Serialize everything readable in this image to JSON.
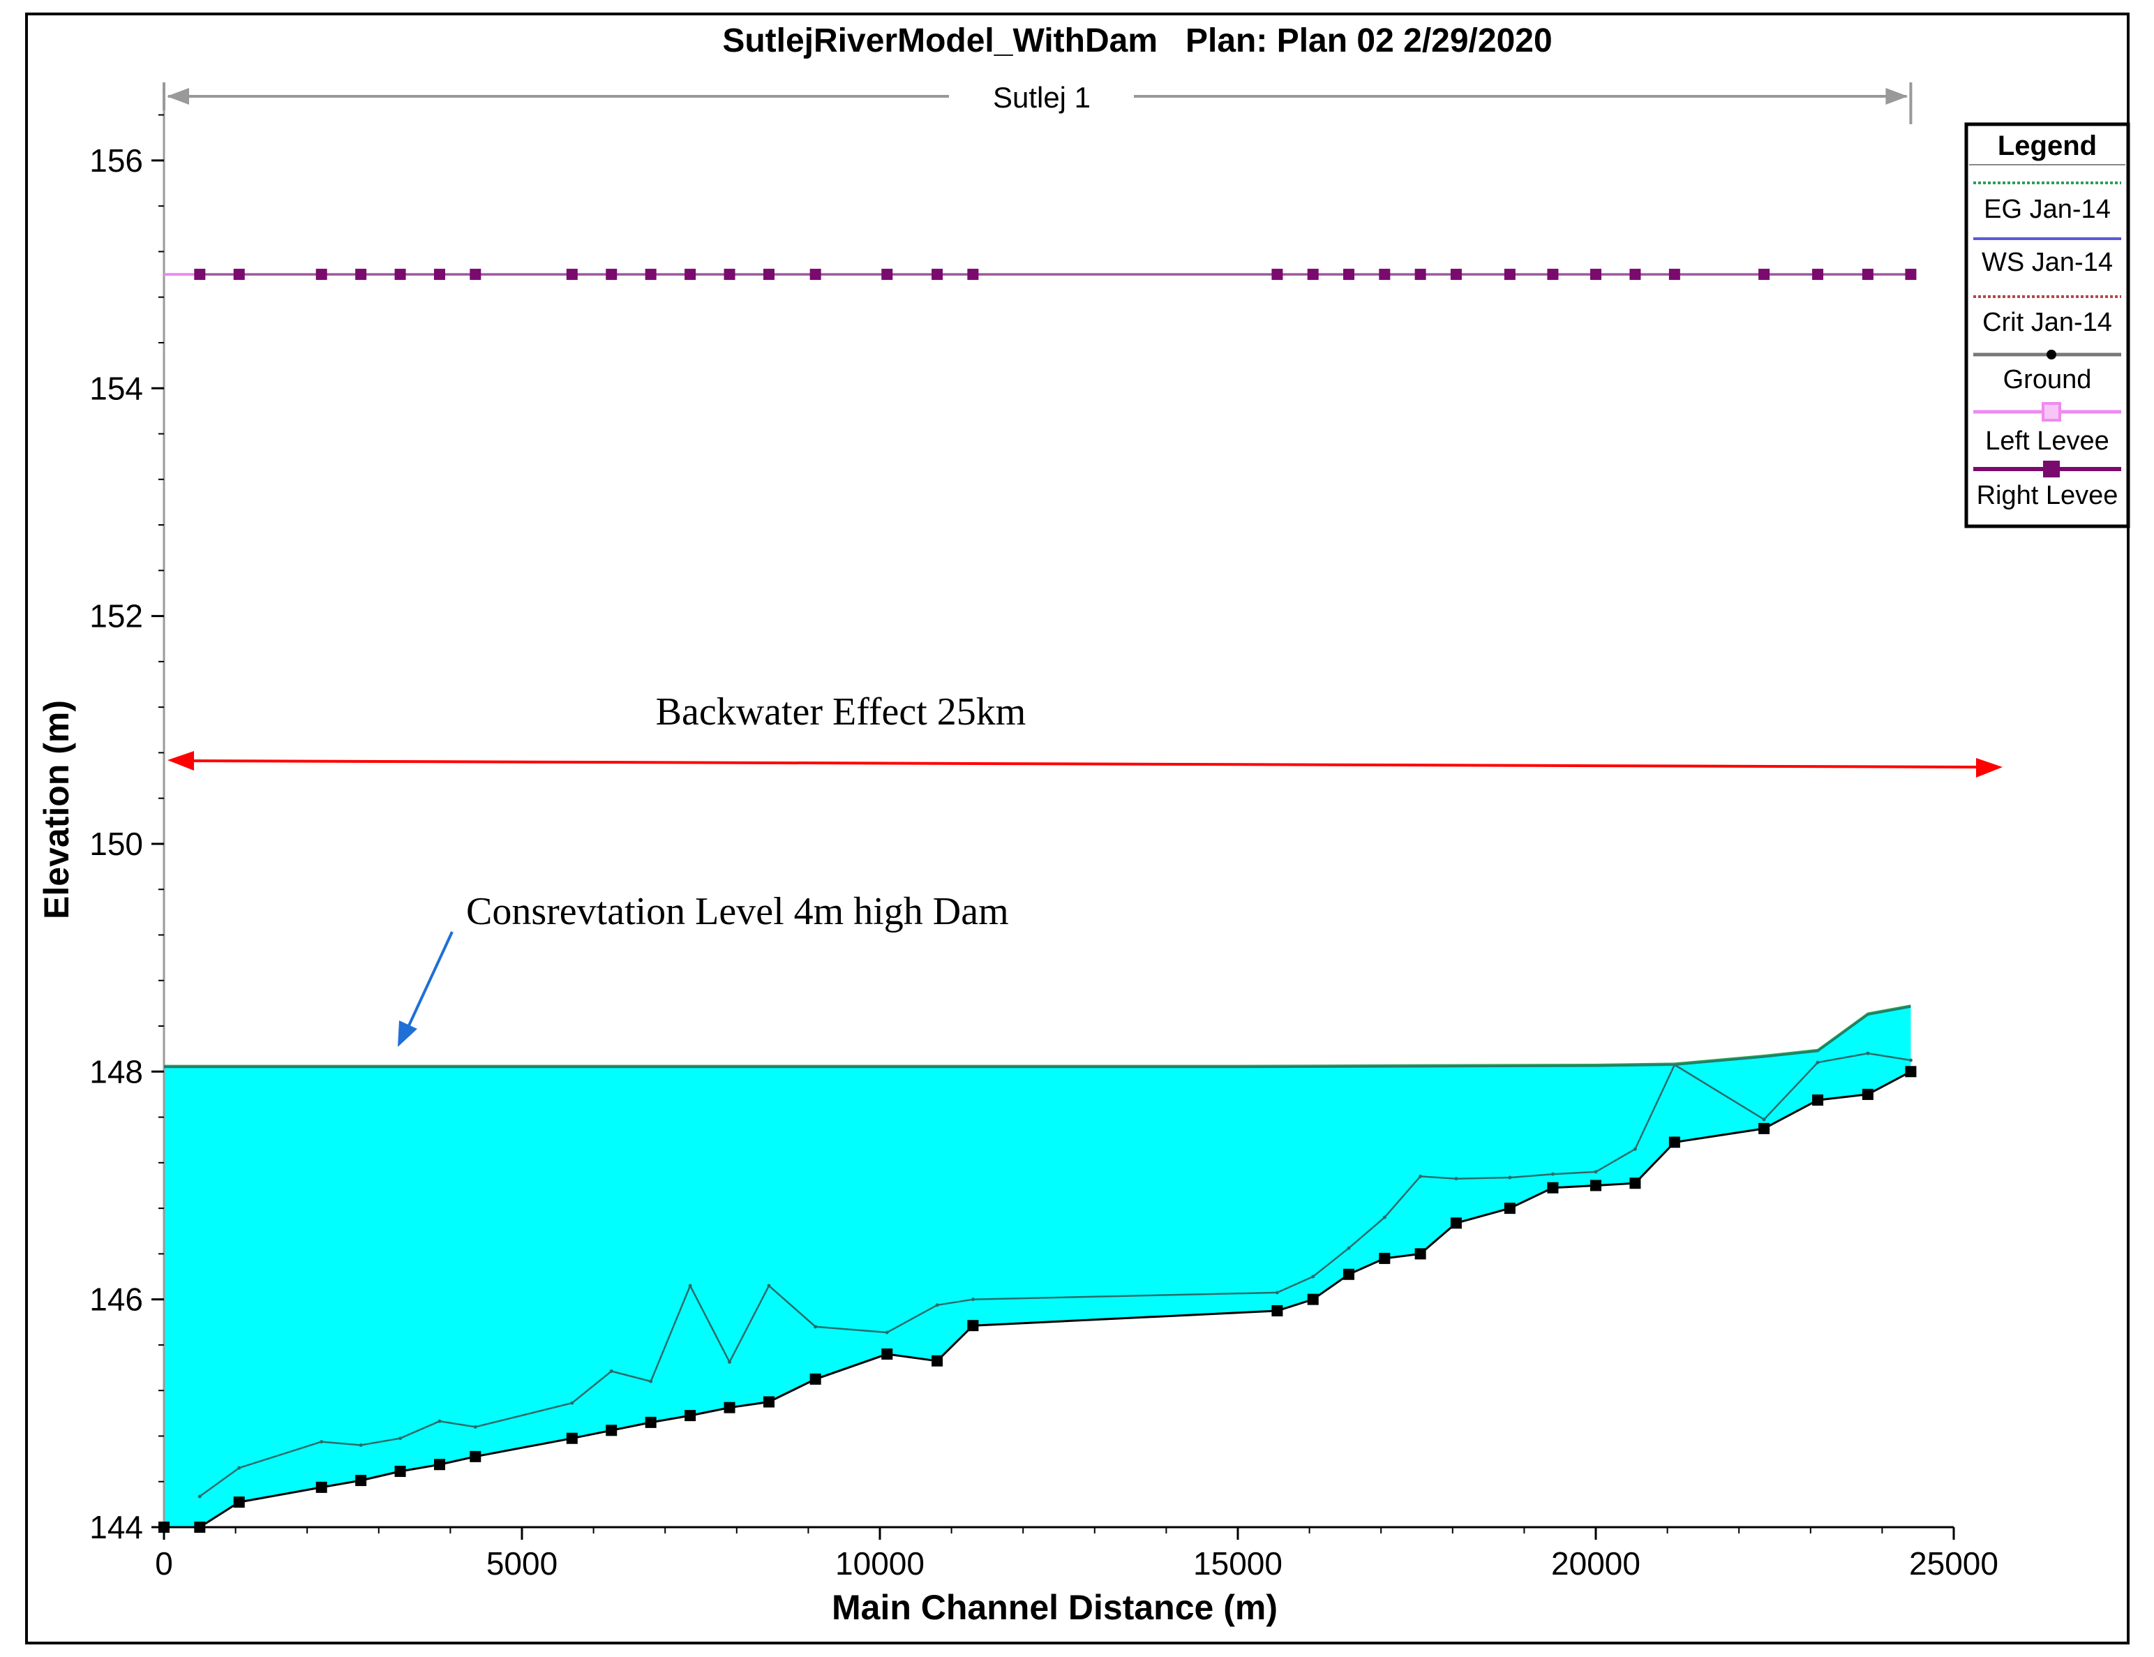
{
  "chart_data": {
    "type": "line",
    "title": "SutlejRiverModel_WithDam   Plan: Plan 02 2/29/2020",
    "reach_label": "Sutlej  1",
    "xlabel": "Main Channel Distance (m)",
    "ylabel": "Elevation (m)",
    "xlim": [
      0,
      25000
    ],
    "ylim": [
      144,
      156.6
    ],
    "x_ticks": [
      0,
      5000,
      10000,
      15000,
      20000,
      25000
    ],
    "y_ticks": [
      144,
      146,
      148,
      150,
      152,
      154,
      156
    ],
    "legend": {
      "title": "Legend",
      "position": "top-right",
      "entries": [
        "EG Jan-14",
        "WS Jan-14",
        "Crit Jan-14",
        "Ground",
        "Left Levee",
        "Right Levee"
      ]
    },
    "colors": {
      "eg": "#2e9e57",
      "ws": "#5b5bd6",
      "crit": "#b5484b",
      "ground": "#000000",
      "left_levee": "#f08af0",
      "right_levee": "#7a0a6e",
      "water_fill": "#00ffff",
      "backwater_arrow": "#ff0000",
      "annotation_arrow": "#1f6fd6",
      "reach_arrow": "#999999"
    },
    "series": [
      {
        "name": "Ground",
        "x": [
          0,
          500,
          1050,
          2200,
          2750,
          3300,
          3850,
          4350,
          5700,
          6250,
          6800,
          7350,
          7900,
          8450,
          9100,
          10100,
          10800,
          11300,
          15550,
          16050,
          16550,
          17050,
          17550,
          18050,
          18800,
          19400,
          20000,
          20550,
          21100,
          22350,
          23100,
          23800,
          24400
        ],
        "y": [
          144.0,
          144.0,
          144.22,
          144.35,
          144.41,
          144.49,
          144.55,
          144.62,
          144.78,
          144.85,
          144.92,
          144.98,
          145.05,
          145.1,
          145.3,
          145.52,
          145.46,
          145.77,
          145.9,
          146.0,
          146.22,
          146.36,
          146.4,
          146.67,
          146.8,
          146.98,
          147.0,
          147.02,
          147.38,
          147.5,
          147.75,
          147.8,
          148.0
        ]
      },
      {
        "name": "Crit Jan-14",
        "x": [
          500,
          1050,
          2200,
          2750,
          3300,
          3850,
          4350,
          5700,
          6250,
          6800,
          7350,
          7900,
          8450,
          9100,
          10100,
          10800,
          11300,
          15550,
          16050,
          16550,
          17050,
          17550,
          18050,
          18800,
          19400,
          20000,
          20550,
          21100,
          22350,
          23100,
          23800,
          24400
        ],
        "y": [
          144.27,
          144.52,
          144.75,
          144.72,
          144.78,
          144.93,
          144.88,
          145.09,
          145.37,
          145.28,
          146.12,
          145.45,
          146.12,
          145.76,
          145.71,
          145.95,
          146.0,
          146.06,
          146.2,
          146.45,
          146.72,
          147.08,
          147.06,
          147.07,
          147.1,
          147.12,
          147.32,
          148.06,
          147.58,
          148.08,
          148.16,
          148.1
        ]
      },
      {
        "name": "WS Jan-14",
        "x": [
          0,
          5000,
          10000,
          15000,
          20000,
          21100,
          22350,
          23100,
          23800,
          24400
        ],
        "y": [
          148.04,
          148.04,
          148.04,
          148.04,
          148.05,
          148.06,
          148.13,
          148.18,
          148.5,
          148.57
        ]
      },
      {
        "name": "EG Jan-14",
        "x": [
          0,
          5000,
          10000,
          15000,
          20000,
          21100,
          22350,
          23100,
          23800,
          24400
        ],
        "y": [
          148.05,
          148.05,
          148.05,
          148.05,
          148.06,
          148.07,
          148.14,
          148.19,
          148.51,
          148.58
        ]
      },
      {
        "name": "Left Levee",
        "x": [
          0,
          24400
        ],
        "y": [
          155.0,
          155.0
        ]
      },
      {
        "name": "Right Levee",
        "x": [
          500,
          1050,
          2200,
          2750,
          3300,
          3850,
          4350,
          5700,
          6250,
          6800,
          7350,
          7900,
          8450,
          9100,
          10100,
          10800,
          11300,
          15550,
          16050,
          16550,
          17050,
          17550,
          18050,
          18800,
          19400,
          20000,
          20550,
          21100,
          22350,
          23100,
          23800,
          24400
        ],
        "y": [
          155,
          155,
          155,
          155,
          155,
          155,
          155,
          155,
          155,
          155,
          155,
          155,
          155,
          155,
          155,
          155,
          155,
          155,
          155,
          155,
          155,
          155,
          155,
          155,
          155,
          155,
          155,
          155,
          155,
          155,
          155,
          155
        ]
      }
    ],
    "annotations": [
      {
        "id": "backwater",
        "text": "Backwater Effect 25km"
      },
      {
        "id": "conservation",
        "text": "Consrevtation Level 4m high Dam"
      }
    ]
  }
}
